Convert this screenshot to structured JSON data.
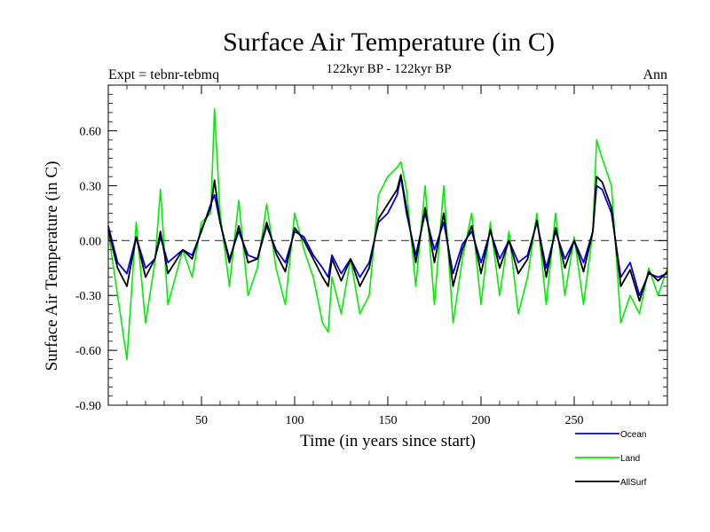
{
  "chart_data": {
    "type": "line",
    "title": "Surface Air Temperature (in C)",
    "subtitle": "122kyr BP - 122kyr BP",
    "left_note": "Expt = tebnr-tebmq",
    "right_note": "Ann",
    "xlabel": "Time (in years since start)",
    "ylabel": "Surface Air Temperature (in C)",
    "xlim": [
      0,
      300
    ],
    "ylim": [
      -0.9,
      0.85
    ],
    "x_ticks": [
      50,
      100,
      150,
      200,
      250
    ],
    "x_tick_labels": [
      "50",
      "100",
      "150",
      "200",
      "250"
    ],
    "y_ticks": [
      -0.9,
      -0.6,
      -0.3,
      0.0,
      0.3,
      0.6
    ],
    "y_tick_labels": [
      "-0.90",
      "-0.60",
      "-0.30",
      "0.00",
      "0.30",
      "0.60"
    ],
    "zero_line": 0.0,
    "legend_position": "bottom-right",
    "series_x": [
      0,
      5,
      10,
      15,
      20,
      25,
      28,
      32,
      40,
      45,
      50,
      55,
      57,
      60,
      65,
      70,
      75,
      80,
      85,
      90,
      95,
      100,
      105,
      110,
      115,
      118,
      120,
      125,
      130,
      135,
      140,
      145,
      150,
      155,
      157,
      160,
      165,
      170,
      175,
      180,
      185,
      190,
      195,
      200,
      205,
      210,
      215,
      220,
      225,
      230,
      235,
      240,
      245,
      250,
      255,
      260,
      262,
      265,
      270,
      275,
      280,
      285,
      290,
      295,
      300
    ],
    "series": [
      {
        "name": "Ocean",
        "color": "#0000ee",
        "values": [
          0.08,
          -0.12,
          -0.18,
          0.02,
          -0.15,
          -0.1,
          0.02,
          -0.12,
          -0.05,
          -0.08,
          0.05,
          0.2,
          0.25,
          0.1,
          -0.1,
          0.05,
          -0.08,
          -0.1,
          0.08,
          -0.05,
          -0.12,
          0.05,
          0.02,
          -0.08,
          -0.15,
          -0.2,
          -0.08,
          -0.18,
          -0.1,
          -0.2,
          -0.12,
          0.1,
          0.15,
          0.25,
          0.35,
          0.15,
          -0.08,
          0.15,
          -0.05,
          0.1,
          -0.18,
          -0.02,
          0.05,
          -0.12,
          0.05,
          -0.1,
          0.0,
          -0.12,
          -0.08,
          0.1,
          -0.15,
          0.05,
          -0.1,
          0.0,
          -0.12,
          0.05,
          0.3,
          0.28,
          0.15,
          -0.2,
          -0.12,
          -0.3,
          -0.18,
          -0.2,
          -0.18
        ]
      },
      {
        "name": "Land",
        "color": "#00ee00",
        "values": [
          0.05,
          -0.3,
          -0.65,
          0.1,
          -0.45,
          -0.12,
          0.28,
          -0.35,
          -0.05,
          -0.2,
          0.1,
          0.15,
          0.72,
          0.15,
          -0.25,
          0.22,
          -0.3,
          -0.15,
          0.2,
          -0.15,
          -0.35,
          0.15,
          -0.05,
          -0.2,
          -0.45,
          -0.5,
          -0.2,
          -0.4,
          -0.1,
          -0.4,
          -0.3,
          0.25,
          0.35,
          0.4,
          0.43,
          0.28,
          -0.25,
          0.3,
          -0.35,
          0.3,
          -0.45,
          -0.1,
          0.15,
          -0.35,
          0.1,
          -0.3,
          0.05,
          -0.4,
          -0.2,
          0.15,
          -0.35,
          0.15,
          -0.3,
          0.02,
          -0.35,
          0.05,
          0.55,
          0.45,
          0.3,
          -0.45,
          -0.3,
          -0.4,
          -0.15,
          -0.3,
          -0.15
        ]
      },
      {
        "name": "AllSurf",
        "color": "#000000",
        "values": [
          0.06,
          -0.15,
          -0.25,
          0.02,
          -0.2,
          -0.1,
          0.05,
          -0.18,
          -0.05,
          -0.1,
          0.06,
          0.18,
          0.33,
          0.1,
          -0.12,
          0.08,
          -0.12,
          -0.1,
          0.1,
          -0.07,
          -0.17,
          0.07,
          0.0,
          -0.1,
          -0.2,
          -0.25,
          -0.1,
          -0.22,
          -0.1,
          -0.25,
          -0.15,
          0.12,
          0.2,
          0.28,
          0.36,
          0.18,
          -0.12,
          0.18,
          -0.12,
          0.15,
          -0.25,
          -0.05,
          0.08,
          -0.18,
          0.06,
          -0.15,
          0.0,
          -0.18,
          -0.1,
          0.11,
          -0.2,
          0.07,
          -0.15,
          0.0,
          -0.17,
          0.05,
          0.35,
          0.32,
          0.18,
          -0.25,
          -0.16,
          -0.33,
          -0.17,
          -0.22,
          -0.17
        ]
      }
    ]
  }
}
